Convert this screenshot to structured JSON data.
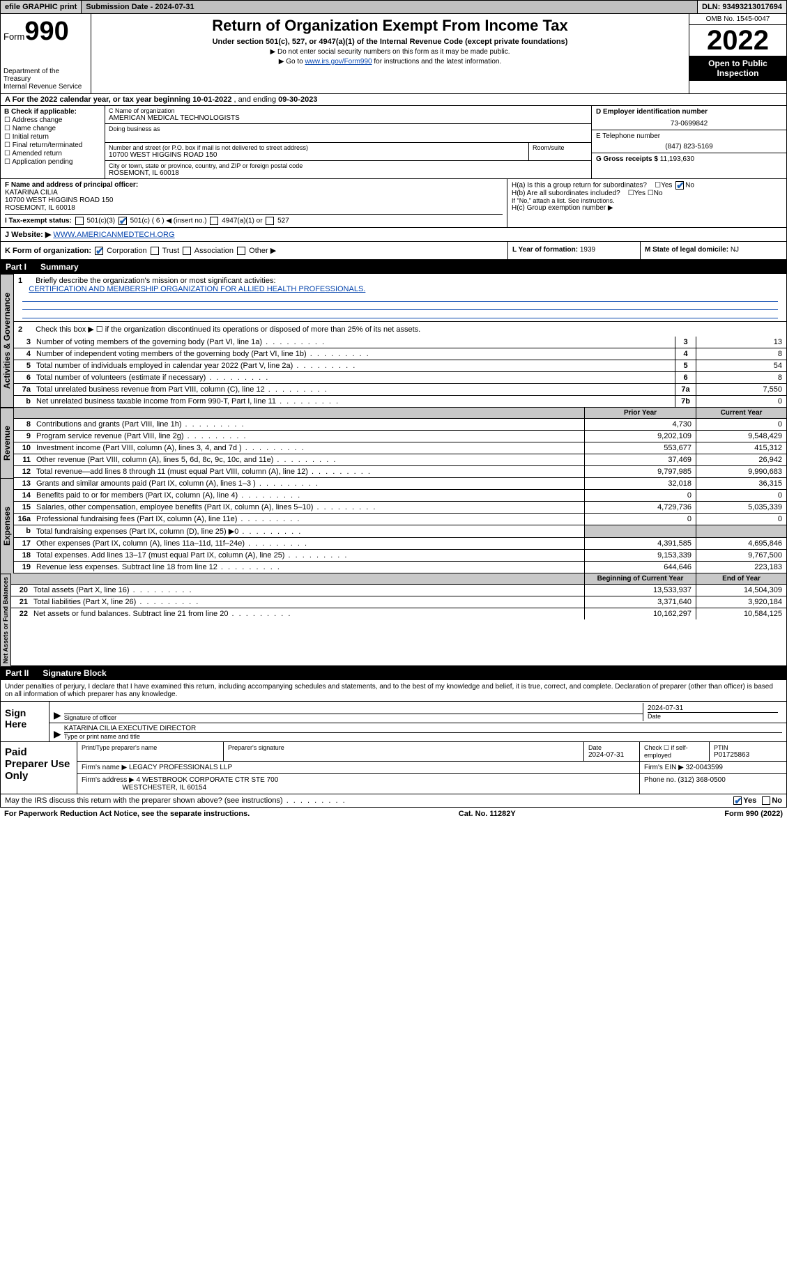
{
  "topbar": {
    "efile": "efile GRAPHIC print",
    "submission": "Submission Date - 2024-07-31",
    "dln": "DLN: 93493213017694"
  },
  "header": {
    "form_prefix": "Form",
    "form_num": "990",
    "dept": "Department of the Treasury",
    "irs": "Internal Revenue Service",
    "title": "Return of Organization Exempt From Income Tax",
    "subtitle": "Under section 501(c), 527, or 4947(a)(1) of the Internal Revenue Code (except private foundations)",
    "note1": "▶ Do not enter social security numbers on this form as it may be made public.",
    "note2_pre": "▶ Go to ",
    "note2_link": "www.irs.gov/Form990",
    "note2_post": " for instructions and the latest information.",
    "omb": "OMB No. 1545-0047",
    "year": "2022",
    "open": "Open to Public Inspection"
  },
  "rowA": {
    "text_pre": "A For the 2022 calendar year, or tax year beginning ",
    "begin": "10-01-2022",
    "mid": " , and ending ",
    "end": "09-30-2023"
  },
  "colB": {
    "header": "B Check if applicable:",
    "opts": [
      "Address change",
      "Name change",
      "Initial return",
      "Final return/terminated",
      "Amended return",
      "Application pending"
    ]
  },
  "colC": {
    "name_label": "C Name of organization",
    "name": "AMERICAN MEDICAL TECHNOLOGISTS",
    "dba_label": "Doing business as",
    "street_label": "Number and street (or P.O. box if mail is not delivered to street address)",
    "room_label": "Room/suite",
    "street": "10700 WEST HIGGINS ROAD 150",
    "city_label": "City or town, state or province, country, and ZIP or foreign postal code",
    "city": "ROSEMONT, IL  60018"
  },
  "colD": {
    "ein_label": "D Employer identification number",
    "ein": "73-0699842",
    "phone_label": "E Telephone number",
    "phone": "(847) 823-5169",
    "gross_label": "G Gross receipts $",
    "gross": "11,193,630"
  },
  "rowF": {
    "label": "F Name and address of principal officer:",
    "name": "KATARINA CILIA",
    "addr1": "10700 WEST HIGGINS ROAD 150",
    "addr2": "ROSEMONT, IL  60018"
  },
  "rowH": {
    "ha": "H(a)  Is this a group return for subordinates?",
    "hb": "H(b)  Are all subordinates included?",
    "hb_note": "If \"No,\" attach a list. See instructions.",
    "hc": "H(c)  Group exemption number ▶"
  },
  "rowI": {
    "label": "I   Tax-exempt status:",
    "c3": "501(c)(3)",
    "c_other": "501(c) ( 6 ) ◀ (insert no.)",
    "a1": "4947(a)(1) or",
    "s527": "527"
  },
  "rowJ": {
    "label": "J   Website: ▶",
    "url": "WWW.AMERICANMEDTECH.ORG"
  },
  "rowK": {
    "label": "K Form of organization:",
    "opts": [
      "Corporation",
      "Trust",
      "Association",
      "Other ▶"
    ],
    "L_label": "L Year of formation:",
    "L_val": "1939",
    "M_label": "M State of legal domicile:",
    "M_val": "NJ"
  },
  "part1": {
    "part": "Part I",
    "title": "Summary"
  },
  "act_gov": {
    "tab": "Activities & Governance",
    "l1_label": "Briefly describe the organization's mission or most significant activities:",
    "l1_text": "CERTIFICATION AND MEMBERSHIP ORGANIZATION FOR ALLIED HEALTH PROFESSIONALS.",
    "l2": "Check this box ▶ ☐  if the organization discontinued its operations or disposed of more than 25% of its net assets.",
    "rows": [
      {
        "n": "3",
        "label": "Number of voting members of the governing body (Part VI, line 1a)",
        "box": "3",
        "val": "13"
      },
      {
        "n": "4",
        "label": "Number of independent voting members of the governing body (Part VI, line 1b)",
        "box": "4",
        "val": "8"
      },
      {
        "n": "5",
        "label": "Total number of individuals employed in calendar year 2022 (Part V, line 2a)",
        "box": "5",
        "val": "54"
      },
      {
        "n": "6",
        "label": "Total number of volunteers (estimate if necessary)",
        "box": "6",
        "val": "8"
      },
      {
        "n": "7a",
        "label": "Total unrelated business revenue from Part VIII, column (C), line 12",
        "box": "7a",
        "val": "7,550"
      },
      {
        "n": "b",
        "label": "Net unrelated business taxable income from Form 990-T, Part I, line 11",
        "box": "7b",
        "val": "0"
      }
    ]
  },
  "two_col_hdr": {
    "prior": "Prior Year",
    "current": "Current Year"
  },
  "revenue": {
    "tab": "Revenue",
    "rows": [
      {
        "n": "8",
        "label": "Contributions and grants (Part VIII, line 1h)",
        "v1": "4,730",
        "v2": "0"
      },
      {
        "n": "9",
        "label": "Program service revenue (Part VIII, line 2g)",
        "v1": "9,202,109",
        "v2": "9,548,429"
      },
      {
        "n": "10",
        "label": "Investment income (Part VIII, column (A), lines 3, 4, and 7d )",
        "v1": "553,677",
        "v2": "415,312"
      },
      {
        "n": "11",
        "label": "Other revenue (Part VIII, column (A), lines 5, 6d, 8c, 9c, 10c, and 11e)",
        "v1": "37,469",
        "v2": "26,942"
      },
      {
        "n": "12",
        "label": "Total revenue—add lines 8 through 11 (must equal Part VIII, column (A), line 12)",
        "v1": "9,797,985",
        "v2": "9,990,683"
      }
    ]
  },
  "expenses": {
    "tab": "Expenses",
    "rows": [
      {
        "n": "13",
        "label": "Grants and similar amounts paid (Part IX, column (A), lines 1–3 )",
        "v1": "32,018",
        "v2": "36,315"
      },
      {
        "n": "14",
        "label": "Benefits paid to or for members (Part IX, column (A), line 4)",
        "v1": "0",
        "v2": "0"
      },
      {
        "n": "15",
        "label": "Salaries, other compensation, employee benefits (Part IX, column (A), lines 5–10)",
        "v1": "4,729,736",
        "v2": "5,035,339"
      },
      {
        "n": "16a",
        "label": "Professional fundraising fees (Part IX, column (A), line 11e)",
        "v1": "0",
        "v2": "0"
      },
      {
        "n": "b",
        "label": "Total fundraising expenses (Part IX, column (D), line 25) ▶0",
        "v1": "",
        "v2": "",
        "shaded": true
      },
      {
        "n": "17",
        "label": "Other expenses (Part IX, column (A), lines 11a–11d, 11f–24e)",
        "v1": "4,391,585",
        "v2": "4,695,846"
      },
      {
        "n": "18",
        "label": "Total expenses. Add lines 13–17 (must equal Part IX, column (A), line 25)",
        "v1": "9,153,339",
        "v2": "9,767,500"
      },
      {
        "n": "19",
        "label": "Revenue less expenses. Subtract line 18 from line 12",
        "v1": "644,646",
        "v2": "223,183"
      }
    ]
  },
  "net_hdr": {
    "beg": "Beginning of Current Year",
    "end": "End of Year"
  },
  "netassets": {
    "tab": "Net Assets or Fund Balances",
    "rows": [
      {
        "n": "20",
        "label": "Total assets (Part X, line 16)",
        "v1": "13,533,937",
        "v2": "14,504,309"
      },
      {
        "n": "21",
        "label": "Total liabilities (Part X, line 26)",
        "v1": "3,371,640",
        "v2": "3,920,184"
      },
      {
        "n": "22",
        "label": "Net assets or fund balances. Subtract line 21 from line 20",
        "v1": "10,162,297",
        "v2": "10,584,125"
      }
    ]
  },
  "part2": {
    "part": "Part II",
    "title": "Signature Block"
  },
  "sig": {
    "penalty": "Under penalties of perjury, I declare that I have examined this return, including accompanying schedules and statements, and to the best of my knowledge and belief, it is true, correct, and complete. Declaration of preparer (other than officer) is based on all information of which preparer has any knowledge.",
    "sign_here": "Sign Here",
    "sig_officer": "Signature of officer",
    "date": "2024-07-31",
    "date_label": "Date",
    "officer_name": "KATARINA CILIA  EXECUTIVE DIRECTOR",
    "type_name": "Type or print name and title"
  },
  "prep": {
    "title": "Paid Preparer Use Only",
    "h_name": "Print/Type preparer's name",
    "h_sig": "Preparer's signature",
    "h_date": "Date",
    "date": "2024-07-31",
    "check_label": "Check ☐ if self-employed",
    "ptin_label": "PTIN",
    "ptin": "P01725863",
    "firm_label": "Firm's name    ▶",
    "firm": "LEGACY PROFESSIONALS LLP",
    "ein_label": "Firm's EIN ▶",
    "ein": "32-0043599",
    "addr_label": "Firm's address ▶",
    "addr1": "4 WESTBROOK CORPORATE CTR STE 700",
    "addr2": "WESTCHESTER, IL  60154",
    "phone_label": "Phone no.",
    "phone": "(312) 368-0500"
  },
  "footer": {
    "discuss": "May the IRS discuss this return with the preparer shown above? (see instructions)",
    "yes": "Yes",
    "no": "No",
    "paperwork": "For Paperwork Reduction Act Notice, see the separate instructions.",
    "catno": "Cat. No. 11282Y",
    "formno": "Form 990 (2022)"
  }
}
